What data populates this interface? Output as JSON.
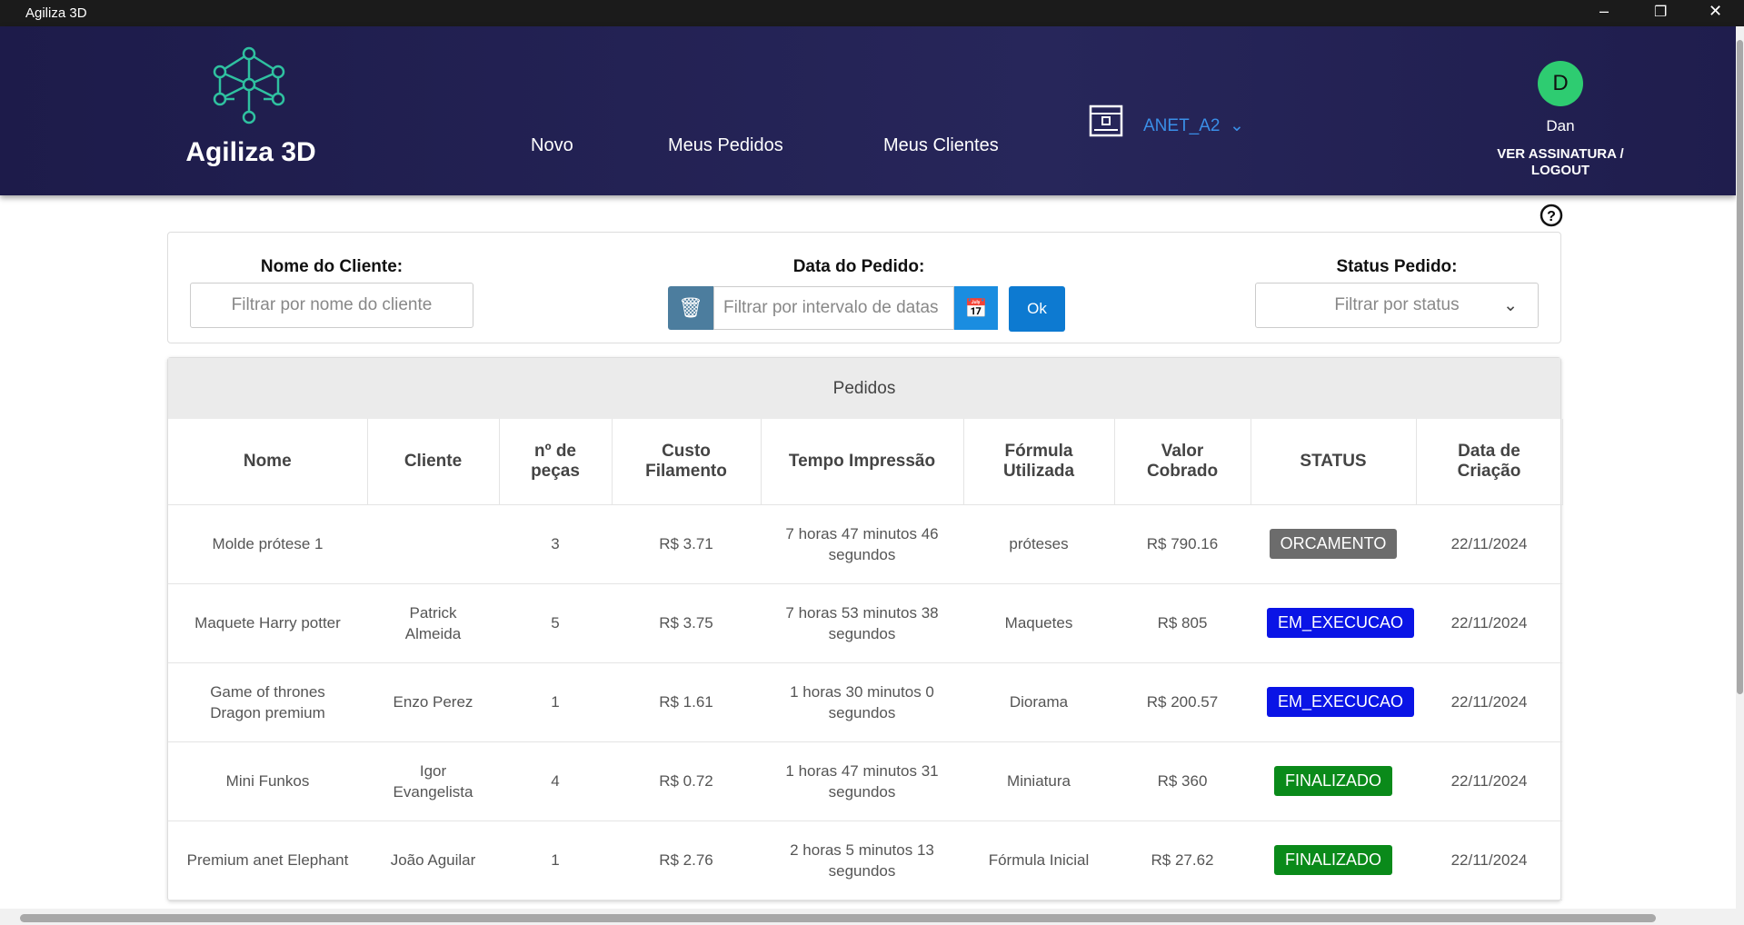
{
  "window": {
    "title": "Agiliza 3D"
  },
  "header": {
    "logo_text": "Agiliza 3D",
    "nav": [
      "Novo",
      "Meus Pedidos",
      "Meus Clientes"
    ],
    "printer": "ANET_A2",
    "user": {
      "initial": "D",
      "name": "Dan",
      "link": "VER ASSINATURA / LOGOUT"
    }
  },
  "filters": {
    "client_label": "Nome do Cliente:",
    "client_placeholder": "Filtrar por nome do cliente",
    "date_label": "Data do Pedido:",
    "date_placeholder": "Filtrar por intervalo de datas",
    "ok": "Ok",
    "status_label": "Status Pedido:",
    "status_placeholder": "Filtrar por status"
  },
  "table": {
    "title": "Pedidos",
    "columns": [
      "Nome",
      "Cliente",
      "nº de peças",
      "Custo Filamento",
      "Tempo Impressão",
      "Fórmula Utilizada",
      "Valor Cobrado",
      "STATUS",
      "Data de Criação"
    ],
    "rows": [
      [
        "Molde prótese 1",
        "",
        "3",
        "R$ 3.71",
        "7 horas 47 minutos 46 segundos",
        "próteses",
        "R$ 790.16",
        "ORCAMENTO",
        "22/11/2024"
      ],
      [
        "Maquete Harry potter",
        "Patrick Almeida",
        "5",
        "R$ 3.75",
        "7 horas 53 minutos 38 segundos",
        "Maquetes",
        "R$ 805",
        "EM_EXECUCAO",
        "22/11/2024"
      ],
      [
        "Game of thrones Dragon premium",
        "Enzo Perez",
        "1",
        "R$ 1.61",
        "1 horas 30 minutos 0 segundos",
        "Diorama",
        "R$ 200.57",
        "EM_EXECUCAO",
        "22/11/2024"
      ],
      [
        "Mini Funkos",
        "Igor Evangelista",
        "4",
        "R$ 0.72",
        "1 horas 47 minutos 31 segundos",
        "Miniatura",
        "R$ 360",
        "FINALIZADO",
        "22/11/2024"
      ],
      [
        "Premium anet Elephant",
        "João Aguilar",
        "1",
        "R$ 2.76",
        "2 horas 5 minutos 13 segundos",
        "Fórmula Inicial",
        "R$ 27.62",
        "FINALIZADO",
        "22/11/2024"
      ]
    ]
  }
}
